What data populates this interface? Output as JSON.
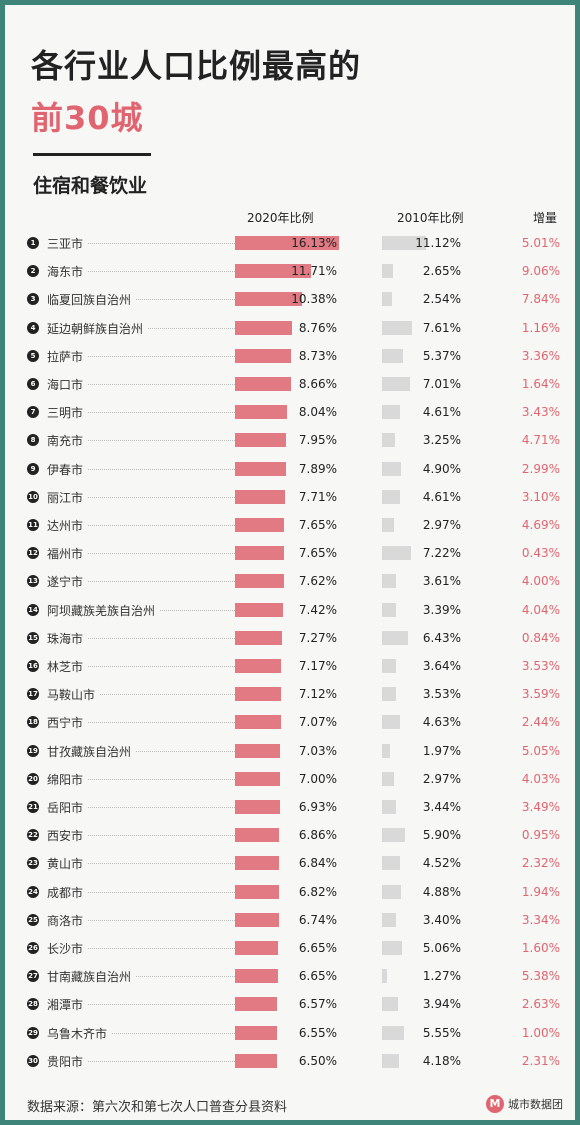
{
  "title_line1": "各行业人口比例最高的",
  "title_line2": "前30城",
  "subtitle": "住宿和餐饮业",
  "footer": "数据来源：第六次和第七次人口普查分县资料",
  "brand": {
    "icon": "M",
    "label": "城市数据团"
  },
  "colors": {
    "primary": "#e27a84",
    "secondary": "#d9d9d9",
    "accent": "#e06570",
    "border": "#3f8478"
  },
  "chart_data": {
    "type": "table",
    "columns": [
      "2020年比例",
      "2010年比例",
      "增量"
    ],
    "scale_max": 16.13,
    "rows": [
      {
        "rank": "1",
        "city": "三亚市",
        "y2020": 16.13,
        "y2010": 11.12,
        "v2020": "16.13%",
        "v2010": "11.12%",
        "inc": "5.01%"
      },
      {
        "rank": "2",
        "city": "海东市",
        "y2020": 11.71,
        "y2010": 2.65,
        "v2020": "11.71%",
        "v2010": "2.65%",
        "inc": "9.06%"
      },
      {
        "rank": "3",
        "city": "临夏回族自治州",
        "y2020": 10.38,
        "y2010": 2.54,
        "v2020": "10.38%",
        "v2010": "2.54%",
        "inc": "7.84%"
      },
      {
        "rank": "4",
        "city": "延边朝鲜族自治州",
        "y2020": 8.76,
        "y2010": 7.61,
        "v2020": "8.76%",
        "v2010": "7.61%",
        "inc": "1.16%"
      },
      {
        "rank": "5",
        "city": "拉萨市",
        "y2020": 8.73,
        "y2010": 5.37,
        "v2020": "8.73%",
        "v2010": "5.37%",
        "inc": "3.36%"
      },
      {
        "rank": "6",
        "city": "海口市",
        "y2020": 8.66,
        "y2010": 7.01,
        "v2020": "8.66%",
        "v2010": "7.01%",
        "inc": "1.64%"
      },
      {
        "rank": "7",
        "city": "三明市",
        "y2020": 8.04,
        "y2010": 4.61,
        "v2020": "8.04%",
        "v2010": "4.61%",
        "inc": "3.43%"
      },
      {
        "rank": "8",
        "city": "南充市",
        "y2020": 7.95,
        "y2010": 3.25,
        "v2020": "7.95%",
        "v2010": "3.25%",
        "inc": "4.71%"
      },
      {
        "rank": "9",
        "city": "伊春市",
        "y2020": 7.89,
        "y2010": 4.9,
        "v2020": "7.89%",
        "v2010": "4.90%",
        "inc": "2.99%"
      },
      {
        "rank": "10",
        "city": "丽江市",
        "y2020": 7.71,
        "y2010": 4.61,
        "v2020": "7.71%",
        "v2010": "4.61%",
        "inc": "3.10%"
      },
      {
        "rank": "11",
        "city": "达州市",
        "y2020": 7.65,
        "y2010": 2.97,
        "v2020": "7.65%",
        "v2010": "2.97%",
        "inc": "4.69%"
      },
      {
        "rank": "12",
        "city": "福州市",
        "y2020": 7.65,
        "y2010": 7.22,
        "v2020": "7.65%",
        "v2010": "7.22%",
        "inc": "0.43%"
      },
      {
        "rank": "13",
        "city": "遂宁市",
        "y2020": 7.62,
        "y2010": 3.61,
        "v2020": "7.62%",
        "v2010": "3.61%",
        "inc": "4.00%"
      },
      {
        "rank": "14",
        "city": "阿坝藏族羌族自治州",
        "y2020": 7.42,
        "y2010": 3.39,
        "v2020": "7.42%",
        "v2010": "3.39%",
        "inc": "4.04%"
      },
      {
        "rank": "15",
        "city": "珠海市",
        "y2020": 7.27,
        "y2010": 6.43,
        "v2020": "7.27%",
        "v2010": "6.43%",
        "inc": "0.84%"
      },
      {
        "rank": "16",
        "city": "林芝市",
        "y2020": 7.17,
        "y2010": 3.64,
        "v2020": "7.17%",
        "v2010": "3.64%",
        "inc": "3.53%"
      },
      {
        "rank": "17",
        "city": "马鞍山市",
        "y2020": 7.12,
        "y2010": 3.53,
        "v2020": "7.12%",
        "v2010": "3.53%",
        "inc": "3.59%"
      },
      {
        "rank": "18",
        "city": "西宁市",
        "y2020": 7.07,
        "y2010": 4.63,
        "v2020": "7.07%",
        "v2010": "4.63%",
        "inc": "2.44%"
      },
      {
        "rank": "19",
        "city": "甘孜藏族自治州",
        "y2020": 7.03,
        "y2010": 1.97,
        "v2020": "7.03%",
        "v2010": "1.97%",
        "inc": "5.05%"
      },
      {
        "rank": "20",
        "city": "绵阳市",
        "y2020": 7.0,
        "y2010": 2.97,
        "v2020": "7.00%",
        "v2010": "2.97%",
        "inc": "4.03%"
      },
      {
        "rank": "21",
        "city": "岳阳市",
        "y2020": 6.93,
        "y2010": 3.44,
        "v2020": "6.93%",
        "v2010": "3.44%",
        "inc": "3.49%"
      },
      {
        "rank": "22",
        "city": "西安市",
        "y2020": 6.86,
        "y2010": 5.9,
        "v2020": "6.86%",
        "v2010": "5.90%",
        "inc": "0.95%"
      },
      {
        "rank": "23",
        "city": "黄山市",
        "y2020": 6.84,
        "y2010": 4.52,
        "v2020": "6.84%",
        "v2010": "4.52%",
        "inc": "2.32%"
      },
      {
        "rank": "24",
        "city": "成都市",
        "y2020": 6.82,
        "y2010": 4.88,
        "v2020": "6.82%",
        "v2010": "4.88%",
        "inc": "1.94%"
      },
      {
        "rank": "25",
        "city": "商洛市",
        "y2020": 6.74,
        "y2010": 3.4,
        "v2020": "6.74%",
        "v2010": "3.40%",
        "inc": "3.34%"
      },
      {
        "rank": "26",
        "city": "长沙市",
        "y2020": 6.65,
        "y2010": 5.06,
        "v2020": "6.65%",
        "v2010": "5.06%",
        "inc": "1.60%"
      },
      {
        "rank": "27",
        "city": "甘南藏族自治州",
        "y2020": 6.65,
        "y2010": 1.27,
        "v2020": "6.65%",
        "v2010": "1.27%",
        "inc": "5.38%"
      },
      {
        "rank": "28",
        "city": "湘潭市",
        "y2020": 6.57,
        "y2010": 3.94,
        "v2020": "6.57%",
        "v2010": "3.94%",
        "inc": "2.63%"
      },
      {
        "rank": "29",
        "city": "乌鲁木齐市",
        "y2020": 6.55,
        "y2010": 5.55,
        "v2020": "6.55%",
        "v2010": "5.55%",
        "inc": "1.00%"
      },
      {
        "rank": "30",
        "city": "贵阳市",
        "y2020": 6.5,
        "y2010": 4.18,
        "v2020": "6.50%",
        "v2010": "4.18%",
        "inc": "2.31%"
      }
    ]
  }
}
